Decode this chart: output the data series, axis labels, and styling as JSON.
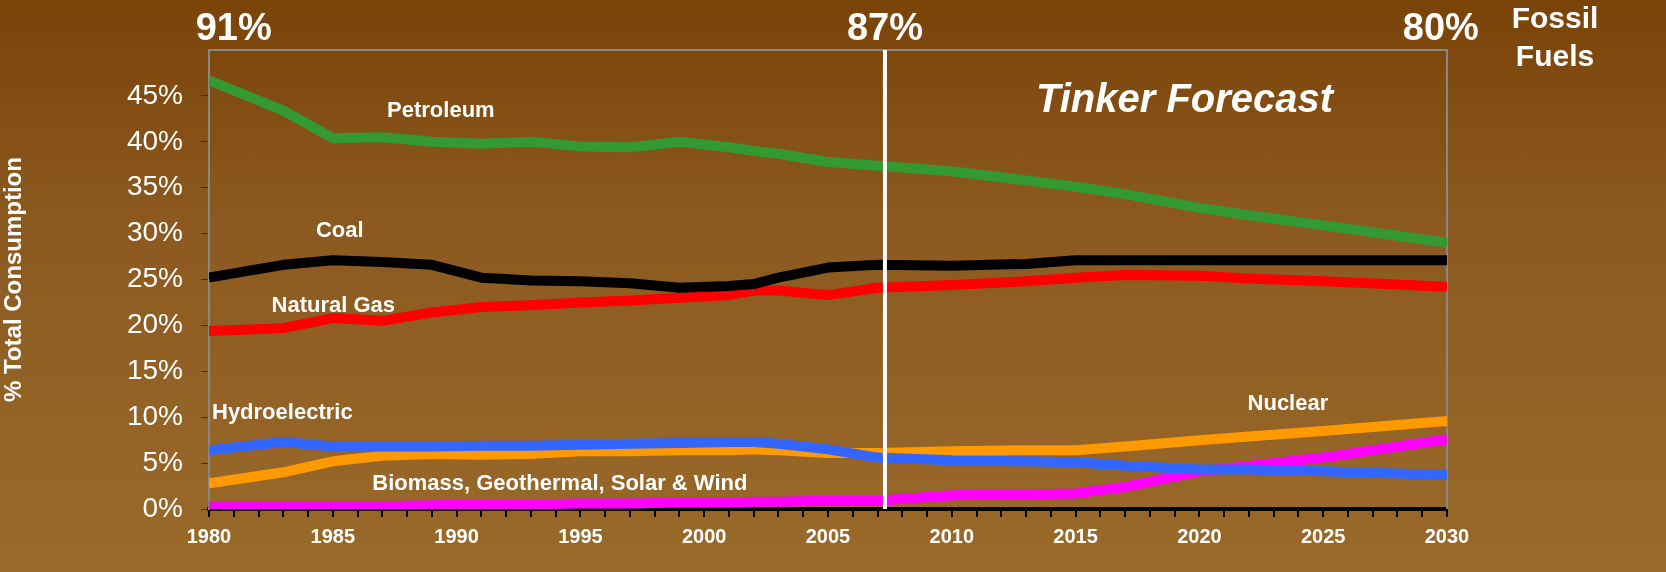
{
  "chart_data": {
    "type": "line",
    "ylabel": "% Total Consumption",
    "x": [
      1980,
      1983,
      1985,
      1987,
      1989,
      1991,
      1993,
      1995,
      1997,
      1999,
      2001,
      2002,
      2003,
      2005,
      2007,
      2010,
      2013,
      2015,
      2017,
      2020,
      2022,
      2025,
      2030
    ],
    "xlim": [
      1980,
      2030
    ],
    "xticks": [
      1980,
      {
        "value": 1981,
        "label": null
      },
      {
        "value": 1982,
        "label": null
      },
      {
        "value": 1983,
        "label": null
      },
      {
        "value": 1984,
        "label": null
      },
      1985,
      {
        "value": 1986,
        "label": null
      },
      {
        "value": 1987,
        "label": null
      },
      {
        "value": 1988,
        "label": null
      },
      {
        "value": 1989,
        "label": null
      },
      1990,
      {
        "value": 1991,
        "label": null
      },
      {
        "value": 1992,
        "label": null
      },
      {
        "value": 1993,
        "label": null
      },
      {
        "value": 1994,
        "label": null
      },
      1995,
      {
        "value": 1996,
        "label": null
      },
      {
        "value": 1997,
        "label": null
      },
      {
        "value": 1998,
        "label": null
      },
      {
        "value": 1999,
        "label": null
      },
      2000,
      {
        "value": 2001,
        "label": null
      },
      {
        "value": 2002,
        "label": null
      },
      {
        "value": 2003,
        "label": null
      },
      {
        "value": 2004,
        "label": null
      },
      2005,
      {
        "value": 2006,
        "label": null
      },
      {
        "value": 2007,
        "label": null
      },
      {
        "value": 2008,
        "label": null
      },
      {
        "value": 2009,
        "label": null
      },
      2010,
      {
        "value": 2011,
        "label": null
      },
      {
        "value": 2012,
        "label": null
      },
      {
        "value": 2013,
        "label": null
      },
      {
        "value": 2014,
        "label": null
      },
      2015,
      {
        "value": 2016,
        "label": null
      },
      {
        "value": 2017,
        "label": null
      },
      {
        "value": 2018,
        "label": null
      },
      {
        "value": 2019,
        "label": null
      },
      2020,
      {
        "value": 2021,
        "label": null
      },
      {
        "value": 2022,
        "label": null
      },
      {
        "value": 2023,
        "label": null
      },
      {
        "value": 2024,
        "label": null
      },
      2025,
      {
        "value": 2026,
        "label": null
      },
      {
        "value": 2027,
        "label": null
      },
      {
        "value": 2028,
        "label": null
      },
      {
        "value": 2029,
        "label": null
      },
      2030
    ],
    "ylim": [
      0,
      50
    ],
    "yticks": [
      {
        "value": 0,
        "label": "0%"
      },
      {
        "value": 5,
        "label": "5%"
      },
      {
        "value": 10,
        "label": "10%"
      },
      {
        "value": 15,
        "label": "15%"
      },
      {
        "value": 20,
        "label": "20%"
      },
      {
        "value": 25,
        "label": "25%"
      },
      {
        "value": 30,
        "label": "30%"
      },
      {
        "value": 35,
        "label": "35%"
      },
      {
        "value": 40,
        "label": "40%"
      },
      {
        "value": 45,
        "label": "45%"
      }
    ],
    "grid": false,
    "legend": false,
    "marker": "none",
    "line_style": "solid",
    "series": [
      {
        "name": "Petroleum",
        "color": "#339933",
        "values": [
          46.7,
          43.4,
          40.4,
          40.5,
          40.0,
          39.8,
          40.0,
          39.5,
          39.4,
          40.0,
          39.4,
          39.0,
          38.7,
          37.8,
          37.4,
          36.8,
          35.8,
          35.1,
          34.3,
          32.8,
          32.0,
          30.9,
          29.0
        ]
      },
      {
        "name": "Coal",
        "color": "#000000",
        "values": [
          25.2,
          26.6,
          27.1,
          26.9,
          26.6,
          25.2,
          24.9,
          24.8,
          24.6,
          24.1,
          24.3,
          24.5,
          25.2,
          26.3,
          26.6,
          26.5,
          26.7,
          27.1,
          27.1,
          27.1,
          27.1,
          27.1,
          27.1
        ]
      },
      {
        "name": "Natural Gas",
        "color": "#ff0000",
        "values": [
          19.4,
          19.7,
          20.8,
          20.5,
          21.4,
          22.0,
          22.2,
          22.5,
          22.7,
          23.0,
          23.3,
          23.8,
          23.8,
          23.3,
          24.1,
          24.4,
          24.8,
          25.2,
          25.5,
          25.4,
          25.1,
          24.8,
          24.2
        ]
      },
      {
        "name": "Hydroelectric",
        "color": "#3366ff",
        "values": [
          6.4,
          7.3,
          6.8,
          6.8,
          6.8,
          6.9,
          6.9,
          7.0,
          7.1,
          7.2,
          7.3,
          7.3,
          7.1,
          6.5,
          5.6,
          5.3,
          5.2,
          5.1,
          4.7,
          4.3,
          4.3,
          4.1,
          3.7
        ]
      },
      {
        "name": "Nuclear",
        "color": "#ff9900",
        "values": [
          2.8,
          4.0,
          5.2,
          5.8,
          6.0,
          5.9,
          6.0,
          6.3,
          6.3,
          6.4,
          6.4,
          6.5,
          6.4,
          6.1,
          6.1,
          6.3,
          6.4,
          6.4,
          6.8,
          7.5,
          7.9,
          8.5,
          9.6
        ]
      },
      {
        "name": "Biomass, Geothermal, Solar & Wind",
        "color": "#ff00ff",
        "values": [
          0.3,
          0.3,
          0.3,
          0.3,
          0.4,
          0.5,
          0.5,
          0.6,
          0.6,
          0.7,
          0.7,
          0.8,
          0.8,
          0.9,
          0.9,
          1.5,
          1.6,
          1.7,
          2.4,
          4.1,
          4.7,
          5.6,
          7.6
        ]
      }
    ],
    "ref_lines": [
      {
        "axis": "x",
        "value": 2007.3,
        "color": "#ffffff"
      }
    ],
    "annotations": [
      "Tinker Forecast",
      "91%",
      "87%",
      "80%",
      "Fossil Fuels"
    ]
  }
}
